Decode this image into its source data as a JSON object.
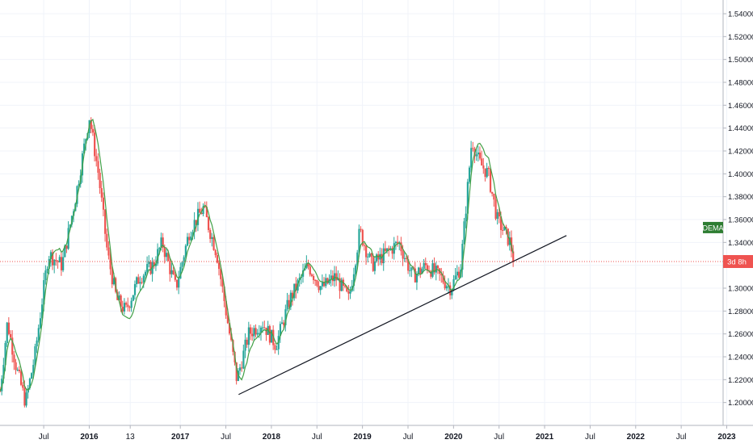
{
  "chart_data": {
    "type": "candlestick",
    "y_axis": {
      "ticks": [
        "1.54000",
        "1.52000",
        "1.50000",
        "1.48000",
        "1.46000",
        "1.44000",
        "1.42000",
        "1.40000",
        "1.38000",
        "1.36000",
        "1.34000",
        "1.32000",
        "1.30000",
        "1.28000",
        "1.26000",
        "1.24000",
        "1.22000",
        "1.20000"
      ],
      "tick_values": [
        1.54,
        1.52,
        1.5,
        1.48,
        1.46,
        1.44,
        1.42,
        1.4,
        1.38,
        1.36,
        1.34,
        1.32,
        1.3,
        1.28,
        1.26,
        1.24,
        1.22,
        1.2
      ],
      "range": [
        1.18,
        1.552
      ]
    },
    "x_axis": {
      "ticks": [
        "Jul",
        "2016",
        "13",
        "2017",
        "Jul",
        "2018",
        "Jul",
        "2019",
        "Jul",
        "2020",
        "Jul",
        "2021",
        "Jul",
        "2022",
        "Jul",
        "2023"
      ],
      "tick_times": [
        2015.5,
        2016.0,
        2016.45,
        2017.0,
        2017.5,
        2018.0,
        2018.5,
        2019.0,
        2019.5,
        2020.0,
        2020.5,
        2021.0,
        2021.5,
        2022.0,
        2022.5,
        2023.0
      ],
      "bold_ticks": [
        "2016",
        "2017",
        "2018",
        "2019",
        "2020",
        "2021",
        "2022",
        "2023"
      ],
      "range": [
        2015.02,
        2022.96
      ]
    },
    "key_points": [
      {
        "t": 2015.02,
        "v": 1.21
      },
      {
        "t": 2015.1,
        "v": 1.27
      },
      {
        "t": 2015.2,
        "v": 1.23
      },
      {
        "t": 2015.3,
        "v": 1.2
      },
      {
        "t": 2015.4,
        "v": 1.24
      },
      {
        "t": 2015.55,
        "v": 1.33
      },
      {
        "t": 2015.7,
        "v": 1.32
      },
      {
        "t": 2015.85,
        "v": 1.38
      },
      {
        "t": 2016.0,
        "v": 1.45
      },
      {
        "t": 2016.1,
        "v": 1.4
      },
      {
        "t": 2016.2,
        "v": 1.33
      },
      {
        "t": 2016.3,
        "v": 1.29
      },
      {
        "t": 2016.4,
        "v": 1.28
      },
      {
        "t": 2016.55,
        "v": 1.31
      },
      {
        "t": 2016.7,
        "v": 1.32
      },
      {
        "t": 2016.8,
        "v": 1.34
      },
      {
        "t": 2016.95,
        "v": 1.3
      },
      {
        "t": 2017.1,
        "v": 1.35
      },
      {
        "t": 2017.25,
        "v": 1.37
      },
      {
        "t": 2017.4,
        "v": 1.33
      },
      {
        "t": 2017.5,
        "v": 1.28
      },
      {
        "t": 2017.62,
        "v": 1.22
      },
      {
        "t": 2017.75,
        "v": 1.26
      },
      {
        "t": 2017.9,
        "v": 1.27
      },
      {
        "t": 2018.05,
        "v": 1.25
      },
      {
        "t": 2018.2,
        "v": 1.29
      },
      {
        "t": 2018.4,
        "v": 1.32
      },
      {
        "t": 2018.55,
        "v": 1.3
      },
      {
        "t": 2018.7,
        "v": 1.31
      },
      {
        "t": 2018.85,
        "v": 1.29
      },
      {
        "t": 2018.97,
        "v": 1.35
      },
      {
        "t": 2019.1,
        "v": 1.32
      },
      {
        "t": 2019.25,
        "v": 1.33
      },
      {
        "t": 2019.4,
        "v": 1.34
      },
      {
        "t": 2019.55,
        "v": 1.31
      },
      {
        "t": 2019.7,
        "v": 1.32
      },
      {
        "t": 2019.85,
        "v": 1.31
      },
      {
        "t": 2019.97,
        "v": 1.3
      },
      {
        "t": 2020.08,
        "v": 1.32
      },
      {
        "t": 2020.2,
        "v": 1.43
      },
      {
        "t": 2020.28,
        "v": 1.41
      },
      {
        "t": 2020.38,
        "v": 1.4
      },
      {
        "t": 2020.48,
        "v": 1.36
      },
      {
        "t": 2020.55,
        "v": 1.35
      },
      {
        "t": 2020.62,
        "v": 1.34
      },
      {
        "t": 2020.66,
        "v": 1.325
      }
    ],
    "ma_line": {
      "name": "DEMA",
      "color": "#43a047",
      "end_value": 1.353
    },
    "trendline": {
      "start": {
        "t": 2017.64,
        "v": 1.207
      },
      "end": {
        "t": 2021.24,
        "v": 1.346
      },
      "color": "#131722"
    },
    "current_price": {
      "value": 1.3233,
      "label": "3d 8h",
      "color": "#ef5350"
    },
    "indicator_label": {
      "text": "DEMA",
      "value": 1.353,
      "color": "#2e7d32"
    },
    "colors": {
      "up": "#26a69a",
      "down": "#ef5350",
      "ma": "#43a047",
      "grid": "#f0f3fa",
      "axis_text": "#131722"
    },
    "grid": true,
    "legend": "none"
  }
}
